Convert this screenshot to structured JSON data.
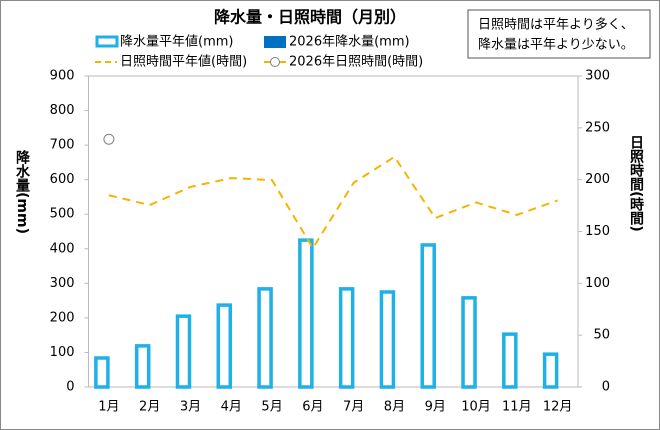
{
  "chart_data": {
    "type": "combo",
    "title": "降水量・日照時間（月別）",
    "annotation": [
      "日照時間は平年より多く、",
      "降水量は平年より少ない。"
    ],
    "y_label": "降水量(mm)",
    "y2_label": "日照時間(時間)",
    "categories": [
      "1月",
      "2月",
      "3月",
      "4月",
      "5月",
      "6月",
      "7月",
      "8月",
      "9月",
      "10月",
      "11月",
      "12月"
    ],
    "series": [
      {
        "name": "降水量平年値(mm)",
        "type": "bar",
        "style": "hollow",
        "color": "#1eb0e6",
        "values": [
          84,
          119,
          205,
          237,
          284,
          425,
          284,
          275,
          411,
          258,
          153,
          95
        ]
      },
      {
        "name": "2026年降水量(mm)",
        "type": "bar",
        "style": "solid",
        "color": "#0070c0",
        "values": [
          null,
          null,
          null,
          null,
          null,
          null,
          null,
          null,
          null,
          null,
          null,
          null
        ]
      },
      {
        "name": "日照時間平年値(時間)",
        "type": "line",
        "style": "dashed",
        "color": "#f5b400",
        "axis": "y2",
        "values": [
          185,
          175.5,
          193,
          201.5,
          199.6,
          134,
          197,
          222,
          163,
          178,
          166,
          180
        ]
      },
      {
        "name": "2026年日照時間(時間)",
        "type": "line",
        "style": "marker",
        "color": "#7f7f7f",
        "axis": "y2",
        "values": [
          239,
          null,
          null,
          null,
          null,
          null,
          null,
          null,
          null,
          null,
          null,
          null
        ]
      }
    ],
    "ylim": [
      0,
      900
    ],
    "yticks": [
      0,
      100,
      200,
      300,
      400,
      500,
      600,
      700,
      800,
      900
    ],
    "y2lim": [
      0,
      300
    ],
    "y2ticks": [
      0,
      50,
      100,
      150,
      200,
      250,
      300
    ]
  }
}
